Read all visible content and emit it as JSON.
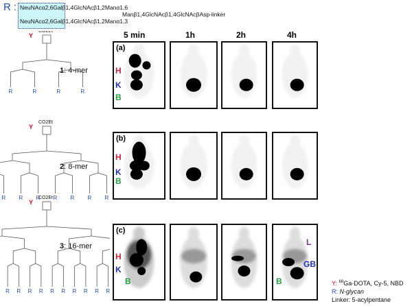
{
  "r_definition": {
    "label": "R :",
    "line1": "NeuNAcα2,6Galβ1,4GlcNAcβ1,2Manα1,6",
    "line2": "NeuNAcα2,6Galβ1,4GlcNAcβ1,2Manα1,3",
    "core": "Manβ1,4GlcNAcβ1,4GlcNAcβAsp-linker"
  },
  "columns": [
    "5 min",
    "1h",
    "2h",
    "4h"
  ],
  "rows": [
    {
      "label": "(a)",
      "compound_number": "1",
      "compound_name": ": 4-mer"
    },
    {
      "label": "(b)",
      "compound_number": "2",
      "compound_name": ": 8-mer"
    },
    {
      "label": "(c)",
      "compound_number": "3",
      "compound_name": ": 16-mer"
    }
  ],
  "structure_labels": {
    "y": "Y",
    "r": "R",
    "ester": "CO2Et"
  },
  "organ_labels": {
    "heart": "H",
    "kidney": "K",
    "bladder": "B",
    "liver": "L",
    "gallbladder": "GB"
  },
  "legend": {
    "y_label": "Y:",
    "y_text": "Ga-DOTA, Cy-5, NBD",
    "y_superscript": "68",
    "r_label": "R:",
    "r_text": "N-glycan",
    "linker": "Linker: 5-acylpentane"
  },
  "colors": {
    "heart": "#d0213a",
    "kidney": "#1f2fbf",
    "bladder": "#22a040",
    "liver": "#8a2a9a",
    "gallbladder": "#1f2fbf",
    "r_label": "#1f4fbf",
    "y_label": "#e0001a"
  }
}
